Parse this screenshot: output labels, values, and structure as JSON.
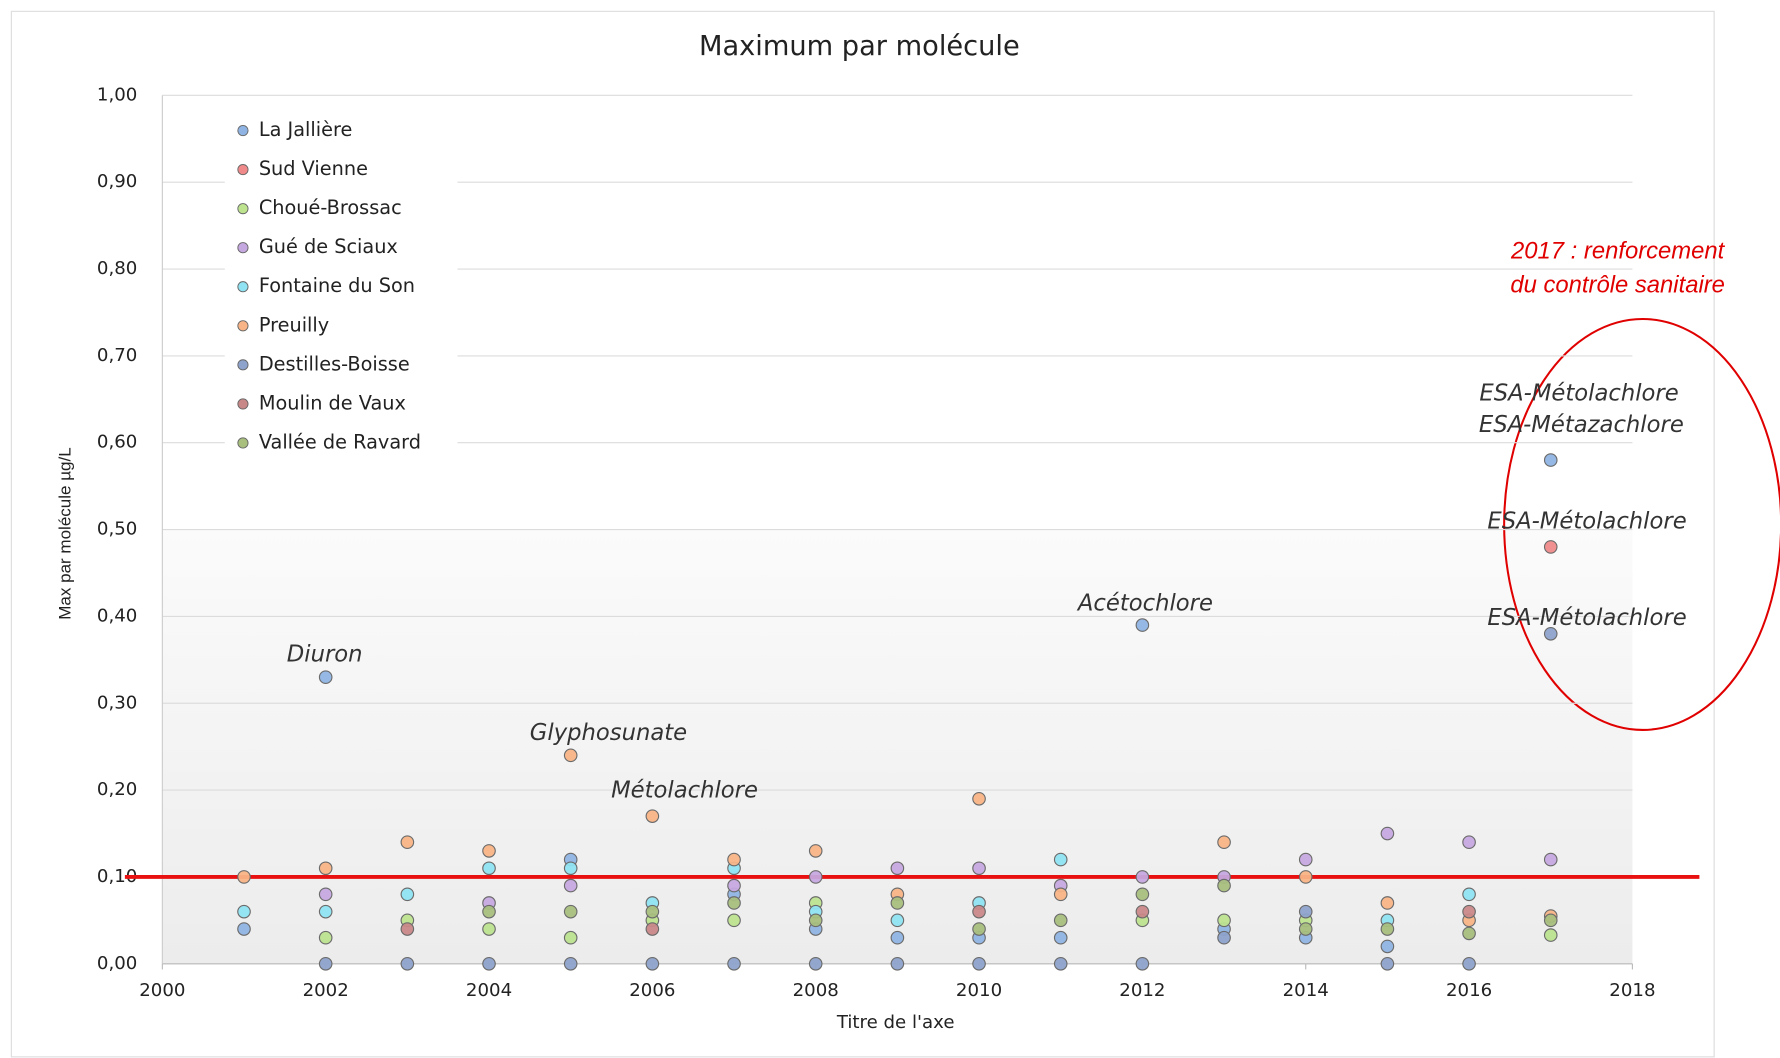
{
  "chart_data": {
    "type": "scatter",
    "title": "Maximum par molécule",
    "x_label": "Titre de l'axe",
    "y_label": "Max par molécule µg/L",
    "x": [
      2001,
      2002,
      2003,
      2004,
      2005,
      2006,
      2007,
      2008,
      2009,
      2010,
      2011,
      2012,
      2013,
      2014,
      2015,
      2016,
      2017
    ],
    "series": [
      {
        "name": "La Jallière",
        "color": "#8fb4e3",
        "values": [
          0.04,
          0.33,
          null,
          null,
          0.12,
          null,
          0.08,
          0.04,
          0.03,
          0.03,
          0.03,
          0.39,
          0.04,
          0.03,
          0.02,
          null,
          0.58
        ]
      },
      {
        "name": "Sud Vienne",
        "color": "#f08a8a",
        "values": [
          null,
          null,
          null,
          null,
          null,
          null,
          null,
          null,
          null,
          null,
          null,
          null,
          null,
          null,
          null,
          null,
          0.48
        ]
      },
      {
        "name": "Choué-Brossac",
        "color": "#bde38f",
        "values": [
          null,
          0.03,
          0.05,
          0.04,
          0.03,
          0.05,
          0.05,
          0.07,
          null,
          null,
          null,
          0.05,
          0.05,
          0.05,
          null,
          null,
          0.033
        ]
      },
      {
        "name": "Gué de Sciaux",
        "color": "#c6a8e0",
        "values": [
          null,
          0.08,
          null,
          0.07,
          0.09,
          null,
          0.09,
          0.1,
          0.11,
          0.11,
          0.09,
          0.1,
          0.1,
          0.12,
          0.15,
          0.14,
          0.12
        ]
      },
      {
        "name": "Fontaine du Son",
        "color": "#8fe3f2",
        "values": [
          0.06,
          0.06,
          0.08,
          0.11,
          0.11,
          0.07,
          0.11,
          0.06,
          0.05,
          0.07,
          0.12,
          null,
          null,
          null,
          0.05,
          0.08,
          null
        ]
      },
      {
        "name": "Preuilly",
        "color": "#f8b486",
        "values": [
          0.1,
          0.11,
          0.14,
          0.13,
          0.24,
          0.17,
          0.12,
          0.13,
          0.08,
          0.19,
          0.08,
          null,
          0.14,
          0.1,
          0.07,
          0.05,
          0.055
        ]
      },
      {
        "name": "Destilles-Boisse",
        "color": "#8ea3cc",
        "values": [
          null,
          0.0,
          0.0,
          0.0,
          0.0,
          0.0,
          0.0,
          0.0,
          0.0,
          0.0,
          0.0,
          0.0,
          0.03,
          0.06,
          0.0,
          0.0,
          0.38
        ]
      },
      {
        "name": "Moulin de Vaux",
        "color": "#c98888",
        "values": [
          null,
          null,
          0.04,
          null,
          null,
          0.04,
          null,
          null,
          null,
          0.06,
          null,
          0.06,
          null,
          null,
          null,
          0.06,
          null
        ]
      },
      {
        "name": "Vallée de Ravard",
        "color": "#a8bf7e",
        "values": [
          null,
          null,
          null,
          0.06,
          0.06,
          0.06,
          0.07,
          0.05,
          0.07,
          0.04,
          0.05,
          0.08,
          0.09,
          0.04,
          0.04,
          0.035,
          0.05
        ]
      }
    ],
    "xlim": [
      2000,
      2018
    ],
    "xticks": [
      2000,
      2002,
      2004,
      2006,
      2008,
      2010,
      2012,
      2014,
      2016,
      2018
    ],
    "ylim": [
      0,
      1
    ],
    "yticks": [
      {
        "value": 0,
        "label": "0,00"
      },
      {
        "value": 0.1,
        "label": "0,10"
      },
      {
        "value": 0.2,
        "label": "0,20"
      },
      {
        "value": 0.3,
        "label": "0,30"
      },
      {
        "value": 0.4,
        "label": "0,40"
      },
      {
        "value": 0.5,
        "label": "0,50"
      },
      {
        "value": 0.6,
        "label": "0,60"
      },
      {
        "value": 0.7,
        "label": "0,70"
      },
      {
        "value": 0.8,
        "label": "0,80"
      },
      {
        "value": 0.9,
        "label": "0,90"
      },
      {
        "value": 1,
        "label": "1,00"
      }
    ],
    "grid": true,
    "legend": "upper left",
    "threshold": 0.1,
    "threshold_color": "#e81010",
    "annotations": [
      "Diuron",
      "Glyphosunate",
      "Métolachlore",
      "Acétochlore",
      "ESA-Métolachlore",
      "ESA-Métazachlore",
      "ESA-Métolachlore",
      "ESA-Métolachlore"
    ],
    "note": [
      "2017 : renforcement",
      "du contrôle sanitaire"
    ]
  }
}
